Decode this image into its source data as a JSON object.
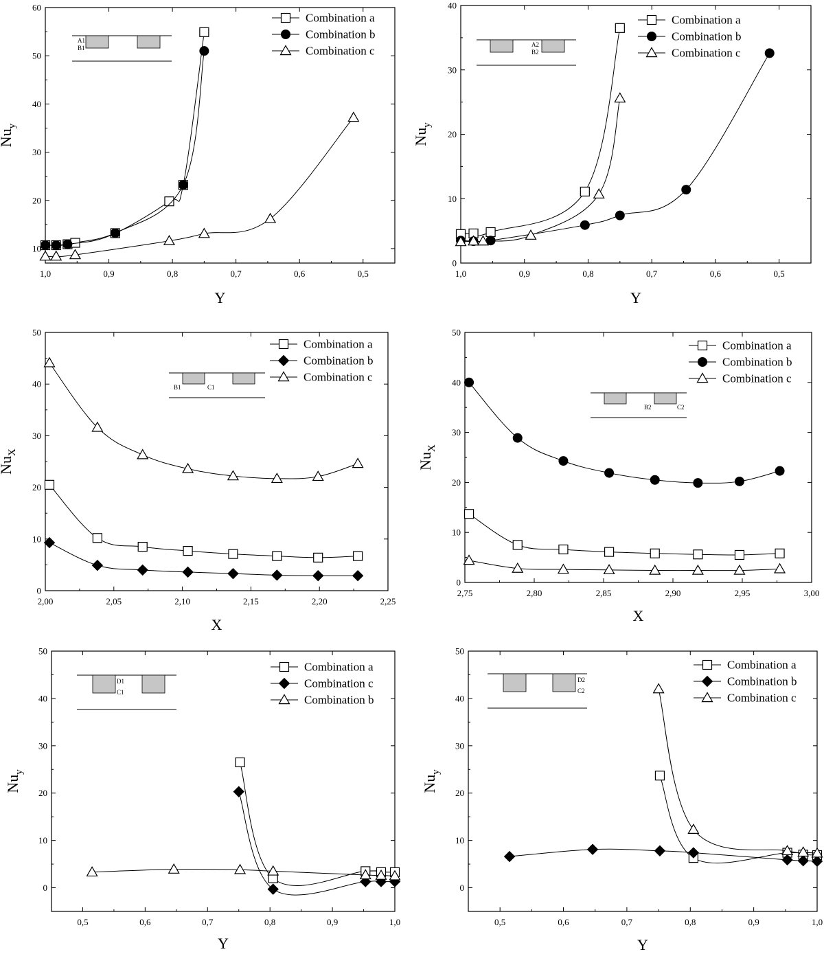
{
  "chart_data": [
    {
      "type": "line",
      "xlabel": "Y",
      "ylabel_main": "Nu",
      "ylabel_sub": "y",
      "xlim": [
        1.0,
        0.45
      ],
      "ylim": [
        7,
        60
      ],
      "xticks": [
        {
          "v": 1.0,
          "label": "1,0"
        },
        {
          "v": 0.9,
          "label": "0,9"
        },
        {
          "v": 0.8,
          "label": "0,8"
        },
        {
          "v": 0.7,
          "label": "0,7"
        },
        {
          "v": 0.6,
          "label": "0,6"
        },
        {
          "v": 0.5,
          "label": "0,5"
        }
      ],
      "yticks": [
        {
          "v": 10,
          "label": "10"
        },
        {
          "v": 20,
          "label": "20"
        },
        {
          "v": 30,
          "label": "30"
        },
        {
          "v": 40,
          "label": "40"
        },
        {
          "v": 50,
          "label": "50"
        },
        {
          "v": 60,
          "label": "60"
        }
      ],
      "legend": [
        "Combination a",
        "Combination b",
        "Combination c"
      ],
      "inset": {
        "type": "top",
        "labels": [
          "A1",
          "B1"
        ]
      },
      "series": [
        {
          "name": "Combination a",
          "marker": "square",
          "x": [
            1.0,
            0.983,
            0.965,
            0.953,
            0.89,
            0.805,
            0.783,
            0.75
          ],
          "y": [
            10.7,
            10.7,
            10.9,
            11.2,
            13.2,
            19.8,
            23.2,
            54.9
          ]
        },
        {
          "name": "Combination b",
          "marker": "circle",
          "x": [
            1.0,
            0.983,
            0.965,
            0.89,
            0.783,
            0.75
          ],
          "y": [
            10.7,
            10.7,
            10.9,
            13.2,
            23.2,
            51.0
          ]
        },
        {
          "name": "Combination c",
          "marker": "triangle",
          "x": [
            1.0,
            0.983,
            0.953,
            0.805,
            0.75,
            0.646,
            0.515
          ],
          "y": [
            8.4,
            8.4,
            8.7,
            11.6,
            13.1,
            16.2,
            37.2
          ]
        }
      ]
    },
    {
      "type": "line",
      "xlabel": "Y",
      "ylabel_main": "Nu",
      "ylabel_sub": "y",
      "xlim": [
        1.0,
        0.45
      ],
      "ylim": [
        0,
        40
      ],
      "xticks": [
        {
          "v": 1.0,
          "label": "1,0"
        },
        {
          "v": 0.9,
          "label": "0,9"
        },
        {
          "v": 0.8,
          "label": "0,8"
        },
        {
          "v": 0.7,
          "label": "0,7"
        },
        {
          "v": 0.6,
          "label": "0,6"
        },
        {
          "v": 0.5,
          "label": "0,5"
        }
      ],
      "yticks": [
        {
          "v": 0,
          "label": "0"
        },
        {
          "v": 10,
          "label": "10"
        },
        {
          "v": 20,
          "label": "20"
        },
        {
          "v": 30,
          "label": "30"
        },
        {
          "v": 40,
          "label": "40"
        }
      ],
      "legend": [
        "Combination a",
        "Combination b",
        "Combination c"
      ],
      "inset": {
        "type": "top",
        "labels": [
          "A2",
          "B2"
        ]
      },
      "series": [
        {
          "name": "Combination a",
          "marker": "square",
          "x": [
            1.0,
            0.98,
            0.953,
            0.805,
            0.75
          ],
          "y": [
            4.5,
            4.6,
            4.8,
            11.1,
            36.5
          ]
        },
        {
          "name": "Combination b",
          "marker": "circle",
          "x": [
            1.0,
            0.98,
            0.953,
            0.805,
            0.75,
            0.646,
            0.515
          ],
          "y": [
            3.5,
            3.4,
            3.5,
            5.9,
            7.4,
            11.4,
            32.6
          ]
        },
        {
          "name": "Combination c",
          "marker": "triangle",
          "x": [
            1.0,
            0.98,
            0.965,
            0.89,
            0.783,
            0.75
          ],
          "y": [
            3.3,
            3.4,
            3.4,
            4.3,
            10.7,
            25.6
          ]
        }
      ]
    },
    {
      "type": "line",
      "xlabel": "X",
      "ylabel_main": "Nu",
      "ylabel_sub": "X",
      "xlim": [
        2.0,
        2.25
      ],
      "ylim": [
        0,
        50
      ],
      "xticks": [
        {
          "v": 2.0,
          "label": "2,00"
        },
        {
          "v": 2.05,
          "label": "2,05"
        },
        {
          "v": 2.1,
          "label": "2,10"
        },
        {
          "v": 2.15,
          "label": "2,15"
        },
        {
          "v": 2.2,
          "label": "2,20"
        },
        {
          "v": 2.25,
          "label": "2,25"
        }
      ],
      "yticks": [
        {
          "v": 0,
          "label": "0"
        },
        {
          "v": 10,
          "label": "10"
        },
        {
          "v": 20,
          "label": "20"
        },
        {
          "v": 30,
          "label": "30"
        },
        {
          "v": 40,
          "label": "40"
        },
        {
          "v": 50,
          "label": "50"
        }
      ],
      "legend": [
        "Combination a",
        "Combination b",
        "Combination c"
      ],
      "inset": {
        "type": "bottomlabels",
        "labels": [
          "B1",
          "C1"
        ]
      },
      "series": [
        {
          "name": "Combination a",
          "marker": "square",
          "x": [
            2.003,
            2.038,
            2.071,
            2.104,
            2.137,
            2.169,
            2.199,
            2.228
          ],
          "y": [
            20.5,
            10.2,
            8.5,
            7.7,
            7.1,
            6.7,
            6.4,
            6.7
          ]
        },
        {
          "name": "Combination b",
          "marker": "diamond",
          "x": [
            2.003,
            2.038,
            2.071,
            2.104,
            2.137,
            2.169,
            2.199,
            2.228
          ],
          "y": [
            9.3,
            4.9,
            4.0,
            3.6,
            3.3,
            3.0,
            2.9,
            2.9
          ]
        },
        {
          "name": "Combination c",
          "marker": "triangle",
          "x": [
            2.003,
            2.038,
            2.071,
            2.104,
            2.137,
            2.169,
            2.199,
            2.228
          ],
          "y": [
            44.1,
            31.6,
            26.3,
            23.6,
            22.2,
            21.7,
            22.1,
            24.6
          ]
        }
      ]
    },
    {
      "type": "line",
      "xlabel": "X",
      "ylabel_main": "Nu",
      "ylabel_sub": "X",
      "xlim": [
        2.75,
        3.0
      ],
      "ylim": [
        0,
        50
      ],
      "xticks": [
        {
          "v": 2.75,
          "label": "2,75"
        },
        {
          "v": 2.8,
          "label": "2,80"
        },
        {
          "v": 2.85,
          "label": "2,85"
        },
        {
          "v": 2.9,
          "label": "2,90"
        },
        {
          "v": 2.95,
          "label": "2,95"
        },
        {
          "v": 3.0,
          "label": "3,00"
        }
      ],
      "yticks": [
        {
          "v": 0,
          "label": "0"
        },
        {
          "v": 10,
          "label": "10"
        },
        {
          "v": 20,
          "label": "20"
        },
        {
          "v": 30,
          "label": "30"
        },
        {
          "v": 40,
          "label": "40"
        },
        {
          "v": 50,
          "label": "50"
        }
      ],
      "legend": [
        "Combination a",
        "Combination b",
        "Combination c"
      ],
      "inset": {
        "type": "bottomlabels",
        "labels": [
          "B2",
          "C2"
        ]
      },
      "series": [
        {
          "name": "Combination a",
          "marker": "square",
          "x": [
            2.753,
            2.788,
            2.821,
            2.854,
            2.887,
            2.918,
            2.948,
            2.977
          ],
          "y": [
            13.7,
            7.5,
            6.6,
            6.1,
            5.8,
            5.6,
            5.5,
            5.8
          ]
        },
        {
          "name": "Combination b",
          "marker": "circle",
          "x": [
            2.753,
            2.788,
            2.821,
            2.854,
            2.887,
            2.918,
            2.948,
            2.977
          ],
          "y": [
            40.0,
            28.9,
            24.3,
            21.9,
            20.5,
            19.9,
            20.2,
            22.3
          ]
        },
        {
          "name": "Combination c",
          "marker": "triangle",
          "x": [
            2.753,
            2.788,
            2.821,
            2.854,
            2.887,
            2.918,
            2.948,
            2.977
          ],
          "y": [
            4.4,
            2.8,
            2.6,
            2.5,
            2.4,
            2.4,
            2.4,
            2.7
          ]
        }
      ]
    },
    {
      "type": "line",
      "xlabel": "Y",
      "ylabel_main": "Nu",
      "ylabel_sub": "y",
      "xlim": [
        0.45,
        1.0
      ],
      "ylim": [
        -5,
        50
      ],
      "xticks": [
        {
          "v": 0.5,
          "label": "0,5"
        },
        {
          "v": 0.6,
          "label": "0,6"
        },
        {
          "v": 0.7,
          "label": "0,7"
        },
        {
          "v": 0.8,
          "label": "0,8"
        },
        {
          "v": 0.9,
          "label": "0,9"
        },
        {
          "v": 1.0,
          "label": "1,0"
        }
      ],
      "yticks": [
        {
          "v": 0,
          "label": "0"
        },
        {
          "v": 10,
          "label": "10"
        },
        {
          "v": 20,
          "label": "20"
        },
        {
          "v": 30,
          "label": "30"
        },
        {
          "v": 40,
          "label": "40"
        },
        {
          "v": 50,
          "label": "50"
        }
      ],
      "legend": [
        "Combination a",
        "Combination c",
        "Combination b"
      ],
      "inset": {
        "type": "rightlabels",
        "labels": [
          "D1",
          "C1"
        ]
      },
      "series": [
        {
          "name": "Combination a",
          "marker": "square",
          "x": [
            0.752,
            0.805,
            0.953,
            0.978,
            1.0
          ],
          "y": [
            26.5,
            2.0,
            3.5,
            3.3,
            3.3
          ]
        },
        {
          "name": "Combination c",
          "marker": "diamond",
          "x": [
            0.75,
            0.805,
            0.953,
            0.978,
            1.0
          ],
          "y": [
            20.3,
            -0.3,
            1.3,
            1.3,
            1.3
          ]
        },
        {
          "name": "Combination b",
          "marker": "triangle",
          "x": [
            0.515,
            0.646,
            0.752,
            0.805,
            0.953,
            0.978,
            1.0
          ],
          "y": [
            3.3,
            3.9,
            3.8,
            3.5,
            2.7,
            2.6,
            2.5
          ]
        }
      ]
    },
    {
      "type": "line",
      "xlabel": "Y",
      "ylabel_main": "Nu",
      "ylabel_sub": "y",
      "xlim": [
        0.45,
        1.0
      ],
      "ylim": [
        -5,
        50
      ],
      "xticks": [
        {
          "v": 0.5,
          "label": "0,5"
        },
        {
          "v": 0.6,
          "label": "0,6"
        },
        {
          "v": 0.7,
          "label": "0,7"
        },
        {
          "v": 0.8,
          "label": "0,8"
        },
        {
          "v": 0.9,
          "label": "0,9"
        },
        {
          "v": 1.0,
          "label": "1,0"
        }
      ],
      "yticks": [
        {
          "v": 0,
          "label": "0"
        },
        {
          "v": 10,
          "label": "10"
        },
        {
          "v": 20,
          "label": "20"
        },
        {
          "v": 30,
          "label": "30"
        },
        {
          "v": 40,
          "label": "40"
        },
        {
          "v": 50,
          "label": "50"
        }
      ],
      "legend": [
        "Combination a",
        "Combination b",
        "Combination c"
      ],
      "inset": {
        "type": "rightlabels",
        "labels": [
          "D2",
          "C2"
        ]
      },
      "series": [
        {
          "name": "Combination a",
          "marker": "square",
          "x": [
            0.752,
            0.805,
            0.953,
            0.978,
            1.0
          ],
          "y": [
            23.7,
            6.3,
            7.4,
            7.0,
            6.9
          ]
        },
        {
          "name": "Combination b",
          "marker": "diamond",
          "x": [
            0.515,
            0.646,
            0.752,
            0.805,
            0.953,
            0.978,
            1.0
          ],
          "y": [
            6.6,
            8.1,
            7.8,
            7.4,
            5.9,
            5.7,
            5.6
          ]
        },
        {
          "name": "Combination c",
          "marker": "triangle",
          "x": [
            0.75,
            0.805,
            0.953,
            0.978,
            1.0
          ],
          "y": [
            42.0,
            12.3,
            7.8,
            7.5,
            7.3
          ]
        }
      ]
    }
  ]
}
